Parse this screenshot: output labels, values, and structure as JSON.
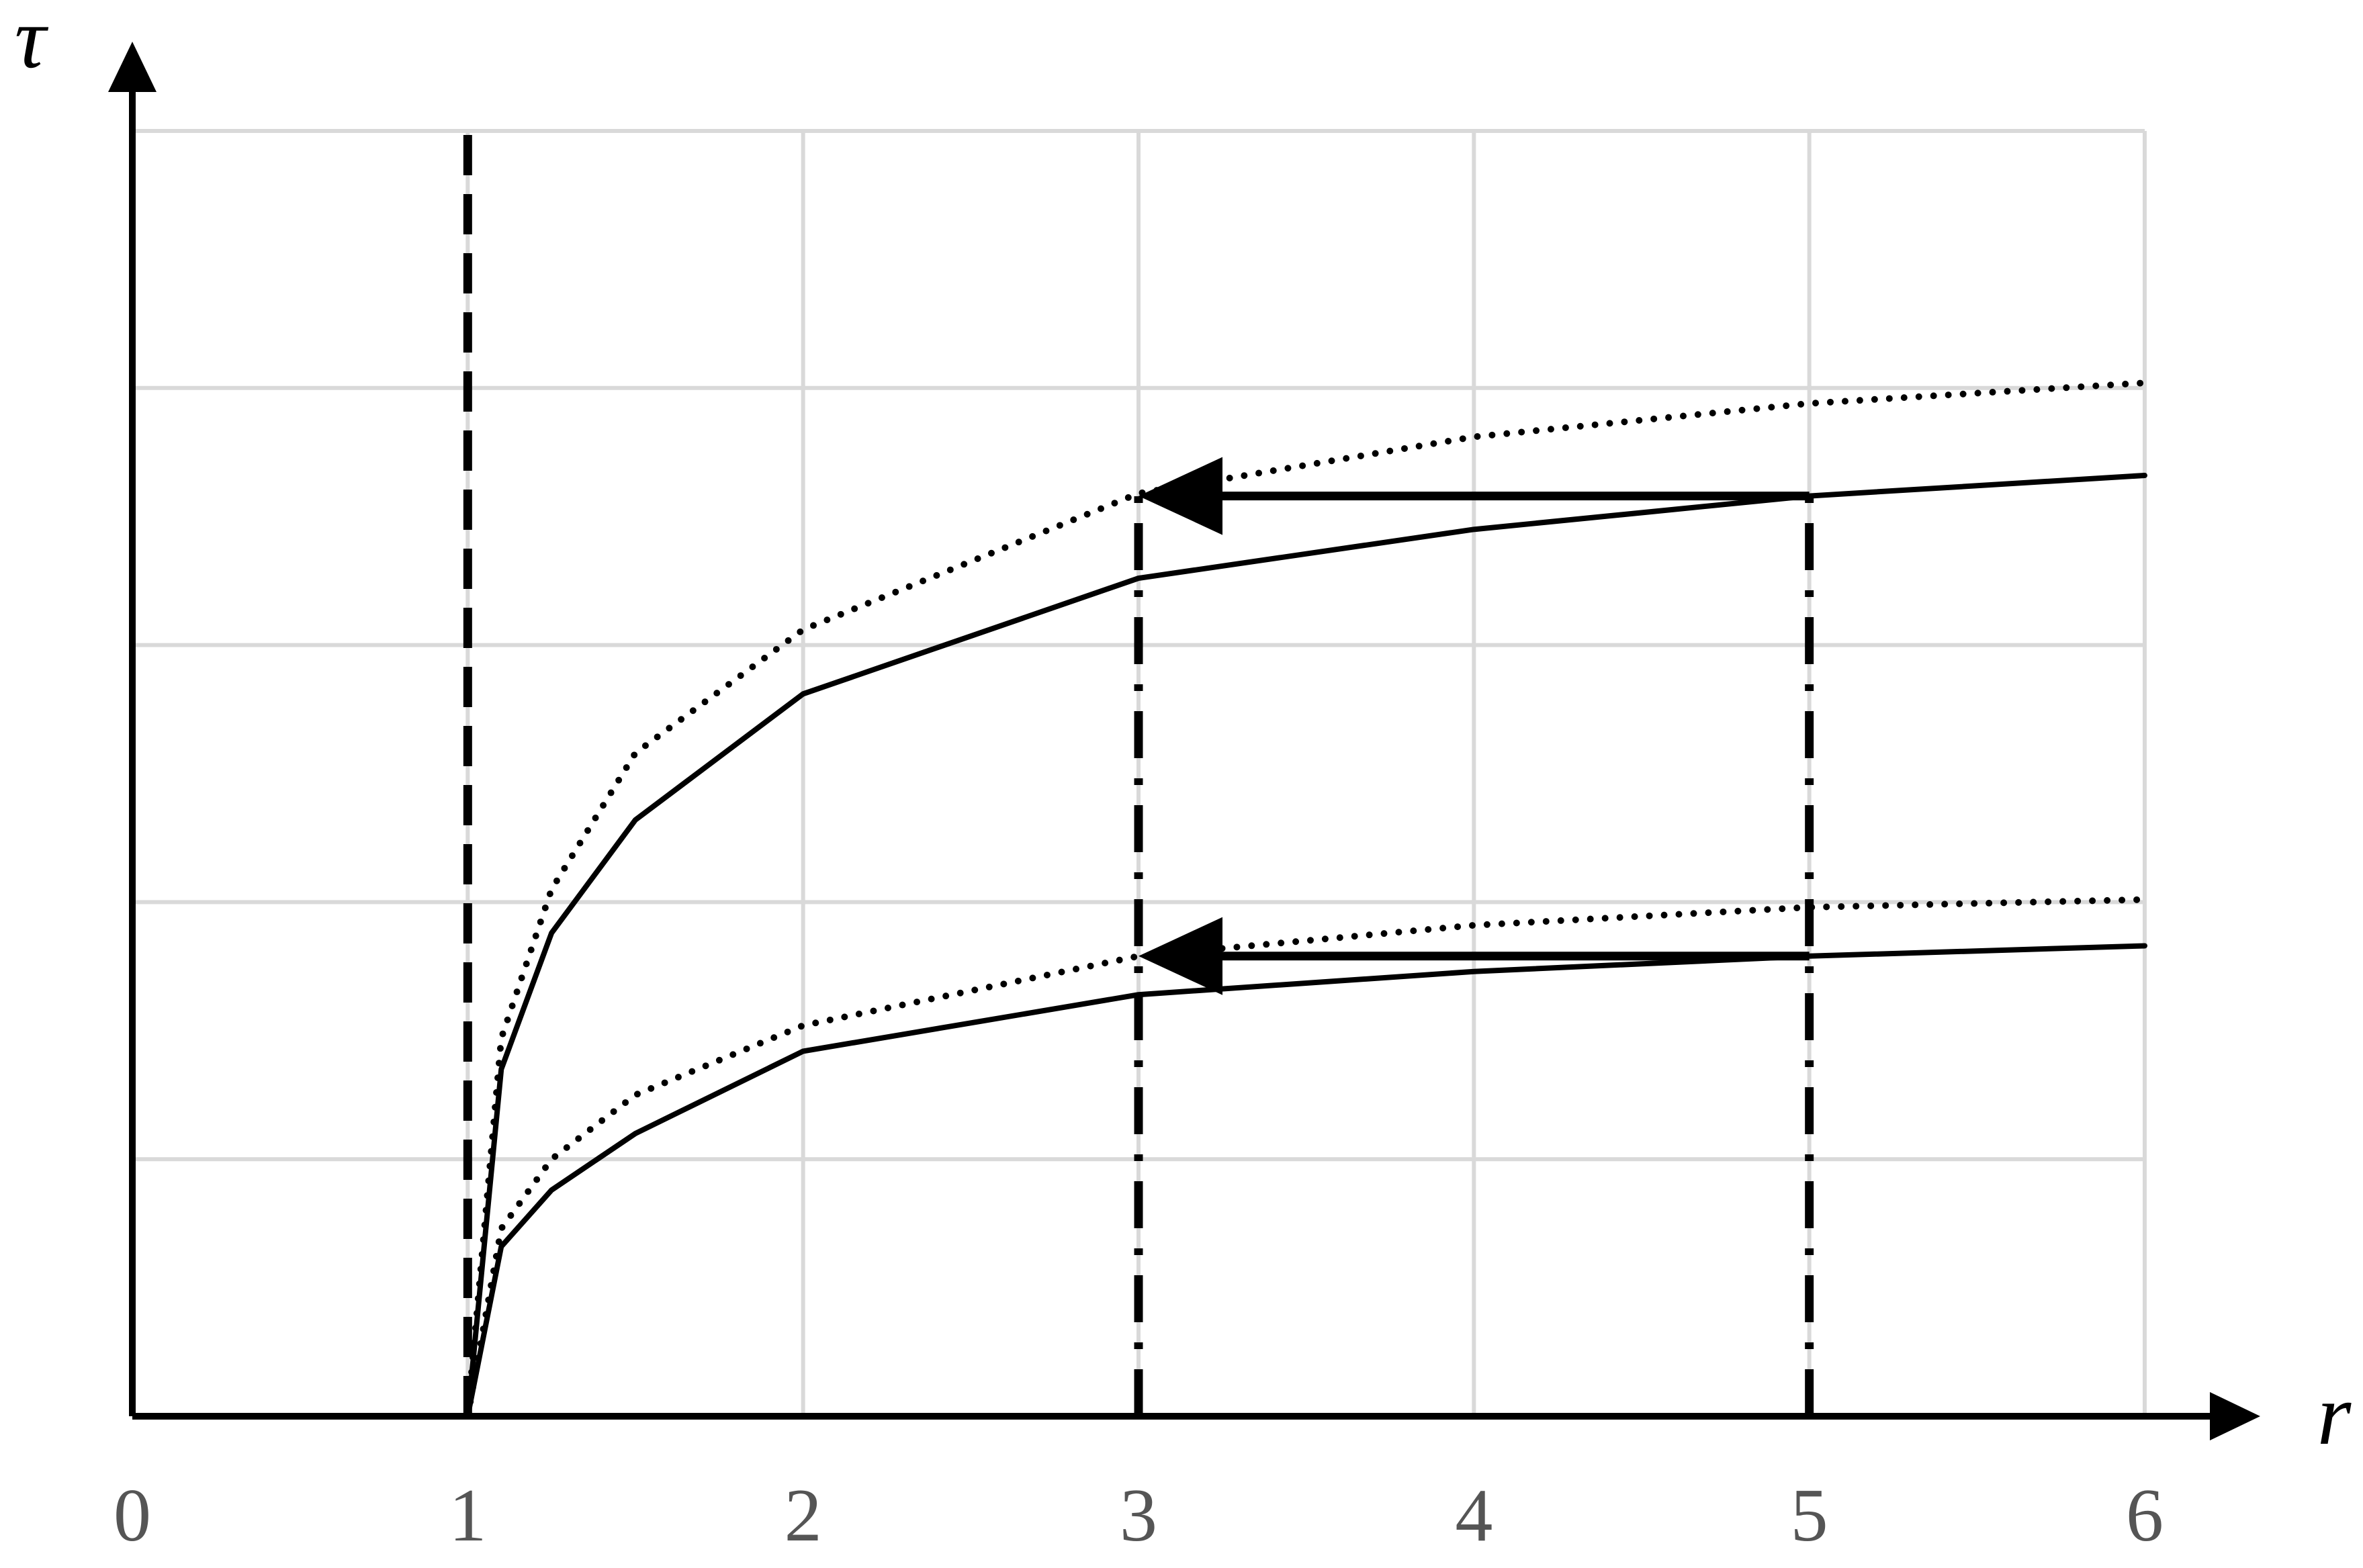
{
  "chart_data": {
    "type": "line",
    "xlabel": "r",
    "ylabel": "τ",
    "xlim": [
      0,
      6
    ],
    "ylim": [
      0,
      5
    ],
    "xticks": [
      0,
      1,
      2,
      3,
      4,
      5,
      6
    ],
    "ygrid": [
      1,
      2,
      3,
      4,
      5
    ],
    "grid": true,
    "x": [
      1,
      1.1,
      1.25,
      1.5,
      2,
      3,
      4,
      5,
      6
    ],
    "series": [
      {
        "style": "solid",
        "color": "#000000",
        "values": [
          0,
          1.35,
          1.88,
          2.32,
          2.81,
          3.26,
          3.45,
          3.58,
          3.66
        ]
      },
      {
        "style": "dotted",
        "color": "#000000",
        "values": [
          0,
          1.47,
          2.05,
          2.58,
          3.06,
          3.59,
          3.81,
          3.94,
          4.02
        ]
      },
      {
        "style": "solid",
        "color": "#000000",
        "values": [
          0,
          0.66,
          0.88,
          1.1,
          1.42,
          1.64,
          1.73,
          1.79,
          1.83
        ]
      },
      {
        "style": "dotted",
        "color": "#000000",
        "values": [
          0,
          0.73,
          1.0,
          1.25,
          1.52,
          1.79,
          1.91,
          1.98,
          2.01
        ]
      }
    ],
    "vlines": [
      {
        "x": 1,
        "y": [
          0,
          5
        ],
        "style": "dashed"
      },
      {
        "x": 3,
        "y": [
          0,
          3.59
        ],
        "style": "dashdot"
      },
      {
        "x": 5,
        "y": [
          0,
          3.58
        ],
        "style": "dashdot"
      }
    ],
    "arrows": [
      {
        "from": [
          5,
          3.58
        ],
        "to": [
          3,
          3.58
        ]
      },
      {
        "from": [
          5,
          1.79
        ],
        "to": [
          3,
          1.79
        ]
      }
    ]
  }
}
